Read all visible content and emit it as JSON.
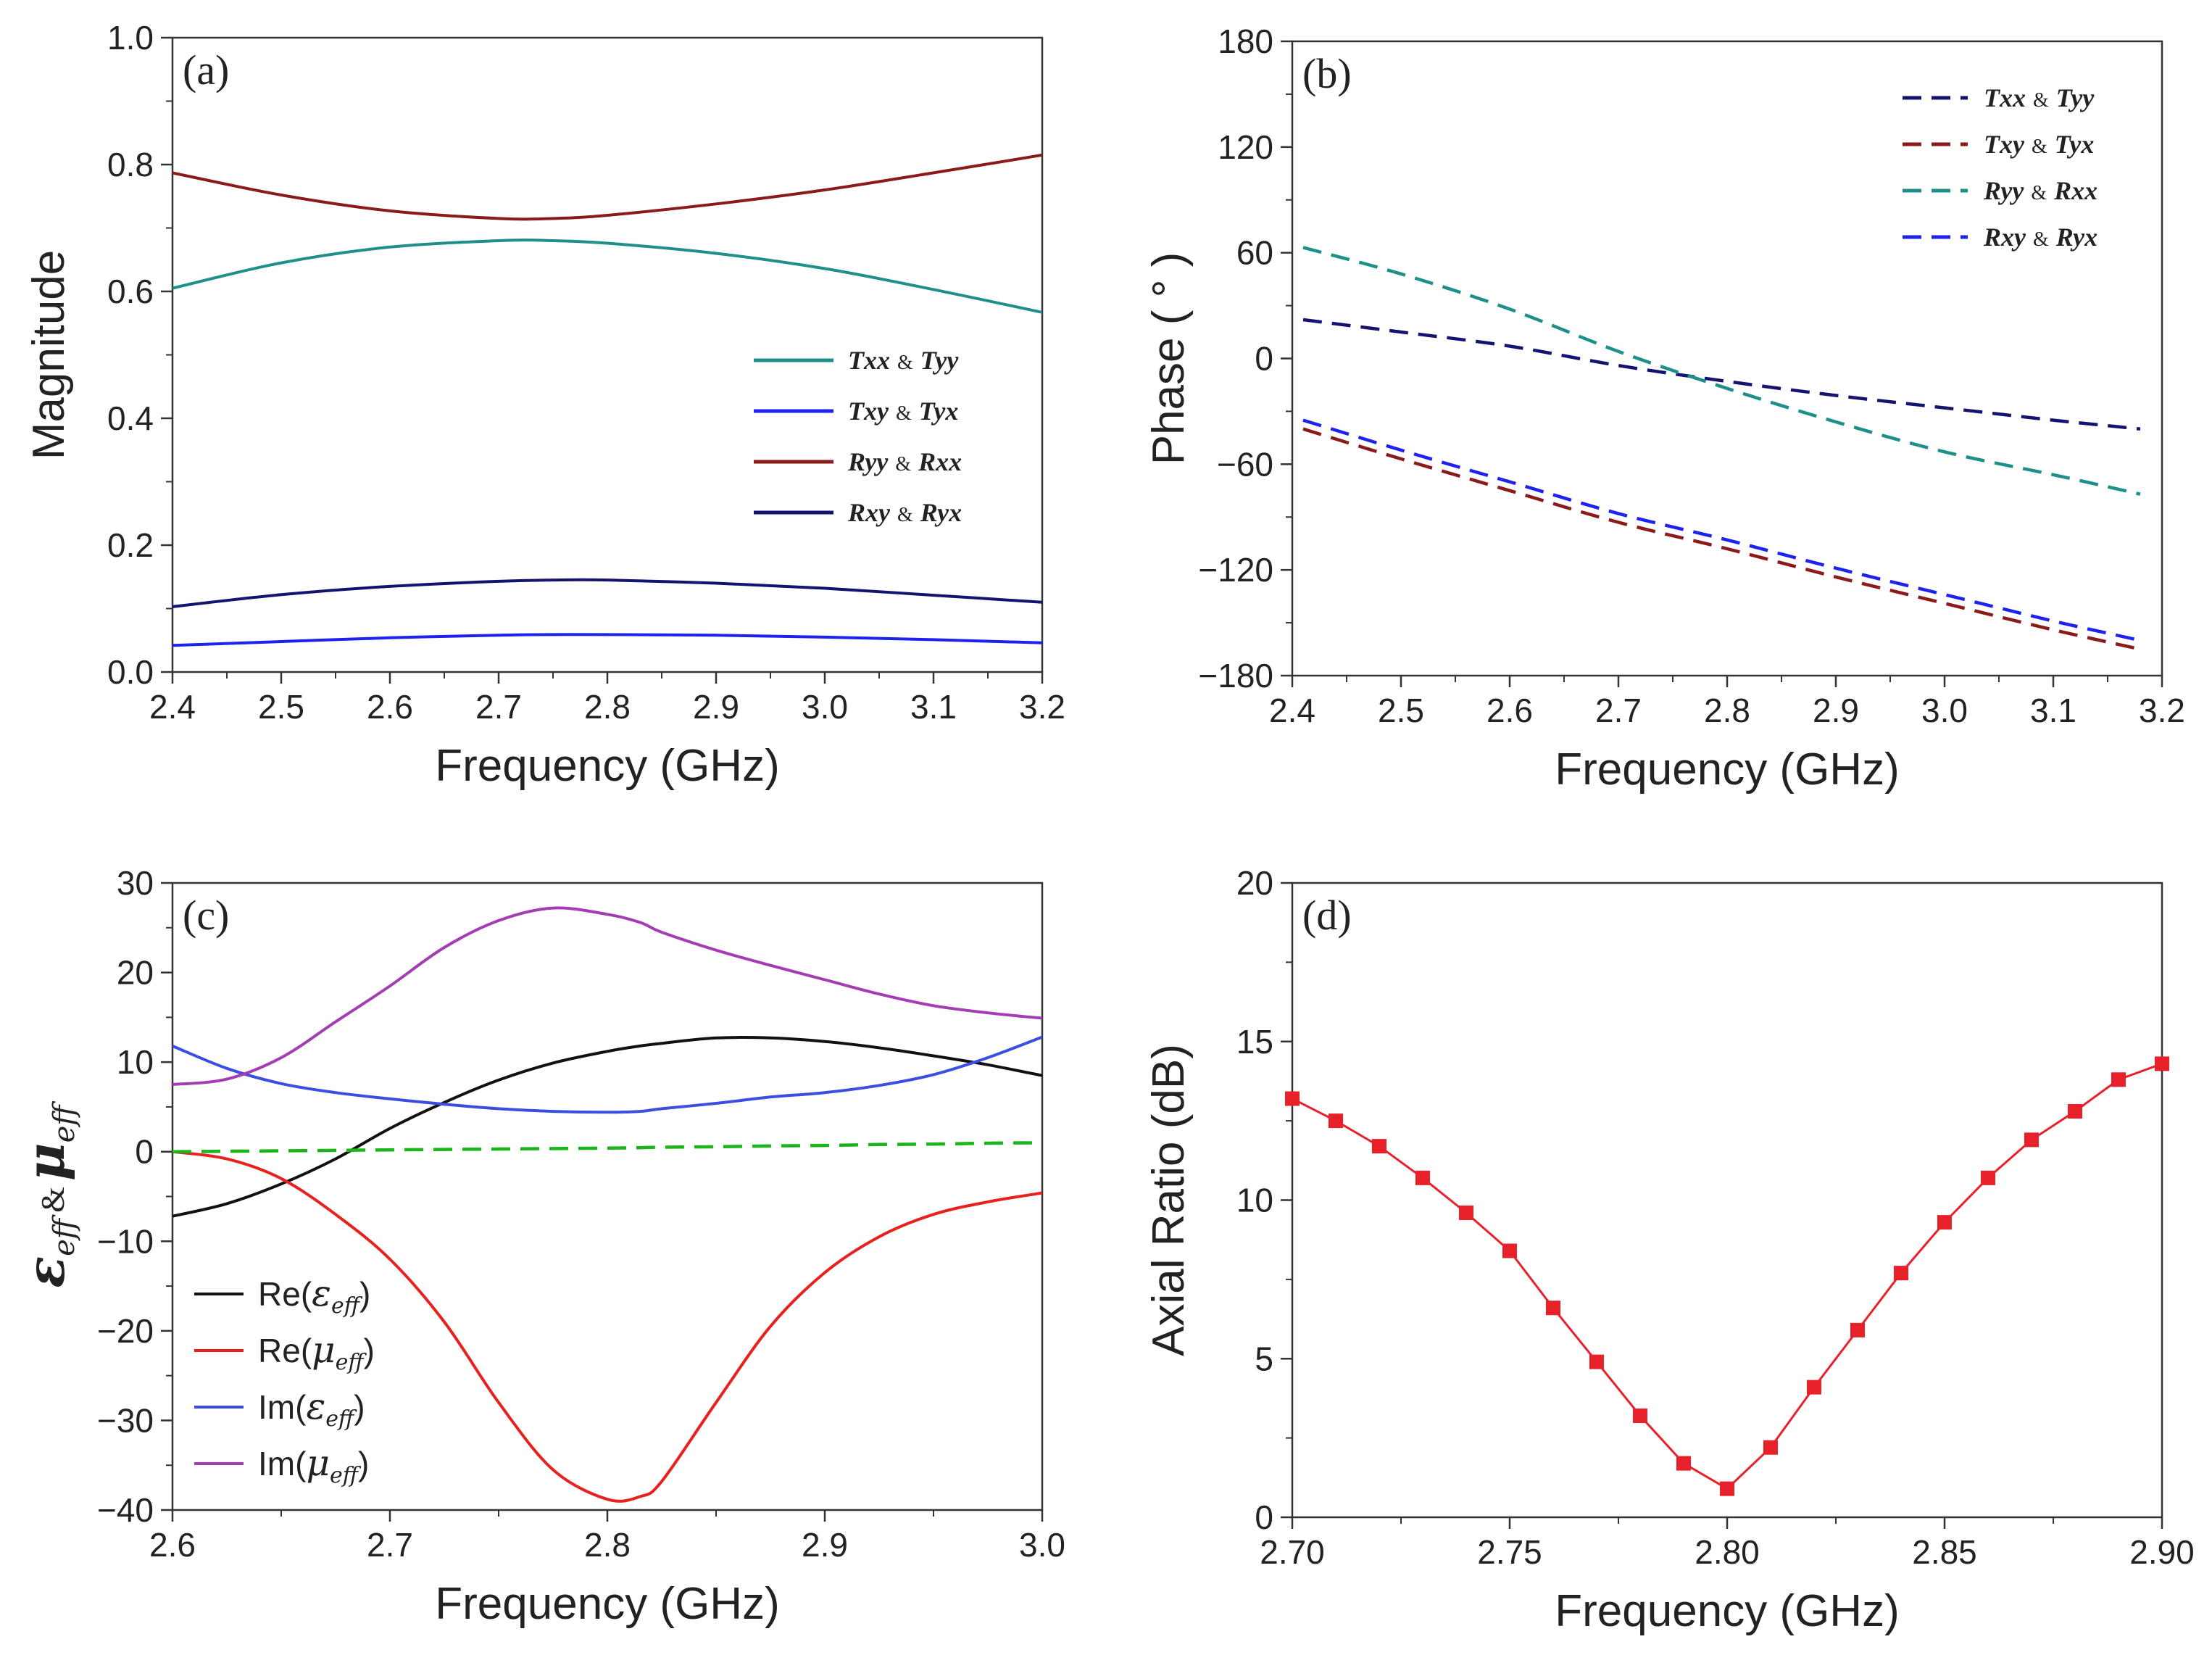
{
  "chart_data": [
    {
      "panel": "(a)",
      "type": "line",
      "xlabel": "Frequency (GHz)",
      "ylabel": "Magnitude",
      "xlim": [
        2.4,
        3.2
      ],
      "ylim": [
        0.0,
        1.0
      ],
      "xticks": [
        "2.4",
        "2.5",
        "2.6",
        "2.7",
        "2.8",
        "2.9",
        "3.0",
        "3.1",
        "3.2"
      ],
      "yticks": [
        "0.0",
        "0.2",
        "0.4",
        "0.6",
        "0.8",
        "1.0"
      ],
      "legend": "center-right",
      "x": [
        2.4,
        2.5,
        2.6,
        2.7,
        2.75,
        2.8,
        2.9,
        3.0,
        3.1,
        3.2
      ],
      "series": [
        {
          "name_a": "Txx",
          "amp": "&",
          "name_b": "Tyy",
          "color": "#1f8f8a",
          "dashed": false,
          "values": [
            0.605,
            0.645,
            0.67,
            0.68,
            0.68,
            0.676,
            0.66,
            0.636,
            0.603,
            0.567
          ]
        },
        {
          "name_a": "Txy",
          "amp": "&",
          "name_b": "Tyx",
          "color": "#1e22ee",
          "dashed": false,
          "values": [
            0.042,
            0.048,
            0.054,
            0.058,
            0.059,
            0.059,
            0.058,
            0.055,
            0.051,
            0.046
          ]
        },
        {
          "name_a": "Ryy",
          "amp": "&",
          "name_b": "Rxx",
          "color": "#8b1a1a",
          "dashed": false,
          "values": [
            0.787,
            0.752,
            0.727,
            0.715,
            0.715,
            0.72,
            0.738,
            0.76,
            0.787,
            0.815
          ]
        },
        {
          "name_a": "Rxy",
          "amp": "&",
          "name_b": "Ryx",
          "color": "#141470",
          "dashed": false,
          "values": [
            0.103,
            0.122,
            0.135,
            0.143,
            0.145,
            0.145,
            0.14,
            0.132,
            0.121,
            0.11
          ]
        }
      ]
    },
    {
      "panel": "(b)",
      "type": "line",
      "xlabel": "Frequency (GHz)",
      "ylabel": "Phase ( ° )",
      "xlim": [
        2.4,
        3.2
      ],
      "ylim": [
        -180,
        180
      ],
      "xticks": [
        "2.4",
        "2.5",
        "2.6",
        "2.7",
        "2.8",
        "2.9",
        "3.0",
        "3.1",
        "3.2"
      ],
      "yticks": [
        "−180",
        "−120",
        "−60",
        "0",
        "60",
        "120",
        "180"
      ],
      "legend": "top-right",
      "x": [
        2.41,
        2.5,
        2.6,
        2.7,
        2.8,
        2.9,
        3.0,
        3.1,
        3.18
      ],
      "series": [
        {
          "name_a": "Txx",
          "amp": "&",
          "name_b": "Tyy",
          "color": "#141470",
          "dashed": true,
          "values": [
            22,
            15,
            7,
            -4,
            -13,
            -21,
            -28,
            -35,
            -40
          ]
        },
        {
          "name_a": "Txy",
          "amp": "&",
          "name_b": "Tyx",
          "color": "#8b1a1a",
          "dashed": true,
          "values": [
            -40,
            -57,
            -75,
            -93,
            -108,
            -124,
            -139,
            -154,
            -165
          ]
        },
        {
          "name_a": "Ryy",
          "amp": "&",
          "name_b": "Rxx",
          "color": "#1f8f8a",
          "dashed": true,
          "values": [
            63,
            48,
            28,
            4,
            -17,
            -36,
            -53,
            -66,
            -77
          ]
        },
        {
          "name_a": "Rxy",
          "amp": "&",
          "name_b": "Ryx",
          "color": "#1e22ee",
          "dashed": true,
          "values": [
            -35,
            -52,
            -70,
            -88,
            -103,
            -119,
            -134,
            -149,
            -160
          ]
        }
      ]
    },
    {
      "panel": "(c)",
      "type": "line",
      "xlabel": "Frequency (GHz)",
      "ylabel_a": "ε",
      "ylabel_a_sub": "eff",
      "ylabel_amp": "&",
      "ylabel_b": "μ",
      "ylabel_b_sub": "eff",
      "xlim": [
        2.6,
        3.0
      ],
      "ylim": [
        -40,
        30
      ],
      "xticks": [
        "2.6",
        "2.7",
        "2.8",
        "2.9",
        "3.0"
      ],
      "yticks": [
        "−40",
        "−30",
        "−20",
        "−10",
        "0",
        "10",
        "20",
        "30"
      ],
      "legend": "bottom-left",
      "x": [
        2.6,
        2.625,
        2.65,
        2.675,
        2.7,
        2.725,
        2.75,
        2.775,
        2.8,
        2.815,
        2.825,
        2.85,
        2.875,
        2.9,
        2.925,
        2.95,
        2.975,
        3.0
      ],
      "series": [
        {
          "part": "Re",
          "sym": "ε",
          "sub": "eff",
          "color": "#111111",
          "dashed": false,
          "values": [
            -7.2,
            -5.8,
            -3.6,
            -0.8,
            2.6,
            5.5,
            8.0,
            9.9,
            11.2,
            11.8,
            12.1,
            12.7,
            12.7,
            12.3,
            11.6,
            10.7,
            9.7,
            8.5
          ]
        },
        {
          "part": "Re",
          "sym": "μ",
          "sub": "eff",
          "color": "#e8201e",
          "dashed": false,
          "values": [
            0.0,
            -0.8,
            -3.0,
            -7.0,
            -12.0,
            -19.0,
            -28.0,
            -35.5,
            -38.8,
            -38.5,
            -36.8,
            -28.0,
            -19.5,
            -13.5,
            -9.5,
            -7.0,
            -5.6,
            -4.6
          ]
        },
        {
          "part": "Im",
          "sym": "ε",
          "sub": "eff",
          "color": "#3a4ee0",
          "dashed": false,
          "values": [
            11.8,
            9.3,
            7.6,
            6.6,
            5.9,
            5.3,
            4.8,
            4.5,
            4.4,
            4.5,
            4.8,
            5.4,
            6.1,
            6.6,
            7.4,
            8.6,
            10.5,
            12.8
          ]
        },
        {
          "part": "Im",
          "sym": "μ",
          "sub": "eff",
          "color": "#a43cb4",
          "dashed": false,
          "values": [
            7.5,
            8.1,
            10.5,
            14.5,
            18.5,
            22.8,
            25.8,
            27.2,
            26.5,
            25.6,
            24.5,
            22.5,
            20.8,
            19.2,
            17.6,
            16.3,
            15.5,
            14.9
          ]
        },
        {
          "name": "",
          "color": "#1bb51b",
          "dashed": true,
          "values": [
            0.0,
            0.05,
            0.1,
            0.15,
            0.2,
            0.25,
            0.3,
            0.35,
            0.4,
            0.45,
            0.5,
            0.55,
            0.65,
            0.7,
            0.8,
            0.85,
            0.95,
            1.0
          ]
        }
      ]
    },
    {
      "panel": "(d)",
      "type": "line",
      "xlabel": "Frequency (GHz)",
      "ylabel": "Axial Ratio (dB)",
      "xlim": [
        2.7,
        2.9
      ],
      "ylim": [
        0,
        20
      ],
      "xticks": [
        "2.70",
        "2.75",
        "2.80",
        "2.85",
        "2.90"
      ],
      "yticks": [
        "0",
        "5",
        "10",
        "15",
        "20"
      ],
      "x": [
        2.7,
        2.71,
        2.72,
        2.73,
        2.74,
        2.75,
        2.76,
        2.77,
        2.78,
        2.79,
        2.8,
        2.81,
        2.82,
        2.83,
        2.84,
        2.85,
        2.86,
        2.87,
        2.88,
        2.89,
        2.9
      ],
      "series": [
        {
          "name": "Axial Ratio",
          "color": "#e8202a",
          "markers": true,
          "values": [
            13.2,
            12.5,
            11.7,
            10.7,
            9.6,
            8.4,
            6.6,
            4.9,
            3.2,
            1.7,
            0.9,
            2.2,
            4.1,
            5.9,
            7.7,
            9.3,
            10.7,
            11.9,
            12.8,
            13.8,
            14.3
          ]
        }
      ]
    }
  ]
}
